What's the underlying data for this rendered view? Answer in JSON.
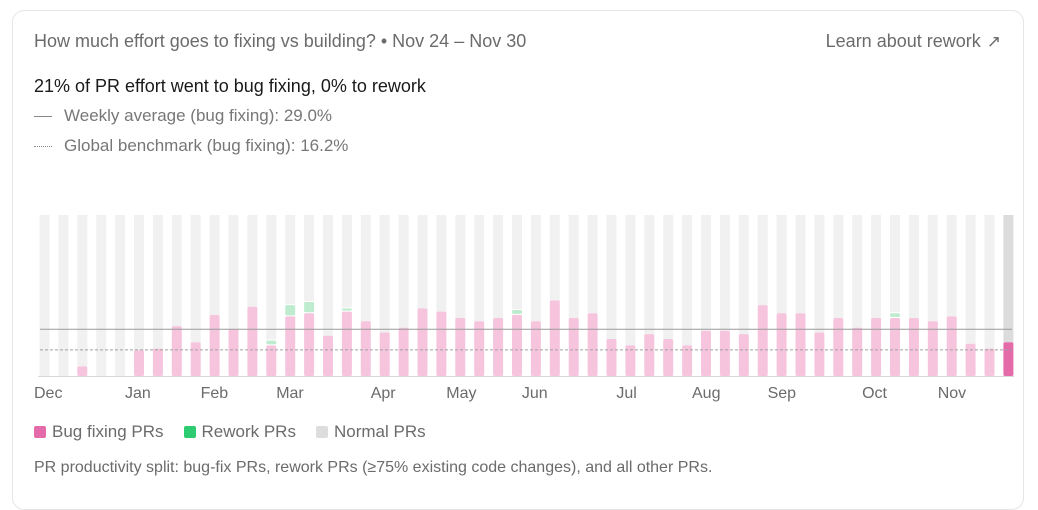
{
  "header": {
    "title": "How much effort goes to fixing vs building? • Nov 24 – Nov 30",
    "link_label": "Learn about rework",
    "link_icon": "arrow-up-right-icon"
  },
  "summary": {
    "headline": "21% of PR effort went to bug fixing, 0% to rework",
    "weekly_average": "Weekly average (bug fixing): 29.0%",
    "global_benchmark": "Global benchmark (bug fixing): 16.2%"
  },
  "legend": {
    "bug_fixing": "Bug fixing PRs",
    "rework": "Rework PRs",
    "normal": "Normal PRs"
  },
  "colors": {
    "bug_fixing": "#f6c5dd",
    "bug_fixing_current": "#e46aa9",
    "rework": "#bfeccf",
    "rework_legend": "#2ecc71",
    "normal": "#f1f1f1",
    "normal_current": "#dcdcdc",
    "legend_bug": "#e46aa9",
    "legend_normal": "#dddddd"
  },
  "footnote": "PR productivity split: bug-fix PRs, rework PRs (≥75% existing code changes), and all other PRs.",
  "chart_data": {
    "type": "bar",
    "stacked": true,
    "y_unit": "% of PR effort",
    "ylim": [
      0,
      100
    ],
    "x_tick_labels": [
      "Dec",
      "Jan",
      "Feb",
      "Mar",
      "Apr",
      "May",
      "Jun",
      "Jul",
      "Aug",
      "Sep",
      "Oct",
      "Nov"
    ],
    "x_tick_week_index": [
      0,
      5,
      9,
      13,
      18,
      22,
      26,
      31,
      35,
      39,
      44,
      48
    ],
    "series": [
      {
        "name": "Bug fixing PRs",
        "values": [
          0,
          0,
          6,
          0,
          0,
          16,
          17,
          31,
          21,
          38,
          29,
          43,
          19,
          37,
          39,
          25,
          40,
          34,
          27,
          30,
          42,
          40,
          36,
          34,
          36,
          38,
          34,
          47,
          36,
          39,
          23,
          19,
          26,
          23,
          19,
          28,
          28,
          26,
          44,
          39,
          39,
          27,
          36,
          30,
          36,
          36,
          36,
          34,
          37,
          20,
          17,
          21
        ]
      },
      {
        "name": "Rework PRs",
        "values": [
          0,
          0,
          0,
          0,
          0,
          0,
          0,
          0,
          0,
          0,
          0,
          0,
          3,
          7,
          7,
          0,
          2,
          0,
          0,
          0,
          0,
          0,
          0,
          0,
          0,
          3,
          0,
          0,
          0,
          0,
          0,
          0,
          0,
          0,
          0,
          0,
          0,
          0,
          0,
          0,
          0,
          0,
          0,
          0,
          0,
          3,
          0,
          0,
          0,
          0,
          0,
          0
        ]
      },
      {
        "name": "Normal PRs",
        "values": [
          100,
          100,
          94,
          100,
          100,
          84,
          83,
          69,
          79,
          62,
          71,
          57,
          78,
          56,
          54,
          75,
          58,
          66,
          73,
          70,
          58,
          60,
          64,
          66,
          64,
          59,
          66,
          53,
          64,
          61,
          77,
          81,
          74,
          77,
          81,
          72,
          72,
          74,
          56,
          61,
          61,
          73,
          64,
          70,
          64,
          61,
          64,
          66,
          63,
          80,
          83,
          79
        ]
      }
    ],
    "reference_lines": [
      {
        "label": "Weekly average (bug fixing)",
        "value": 29.0,
        "style": "solid"
      },
      {
        "label": "Global benchmark (bug fixing)",
        "value": 16.2,
        "style": "dotted"
      }
    ]
  }
}
